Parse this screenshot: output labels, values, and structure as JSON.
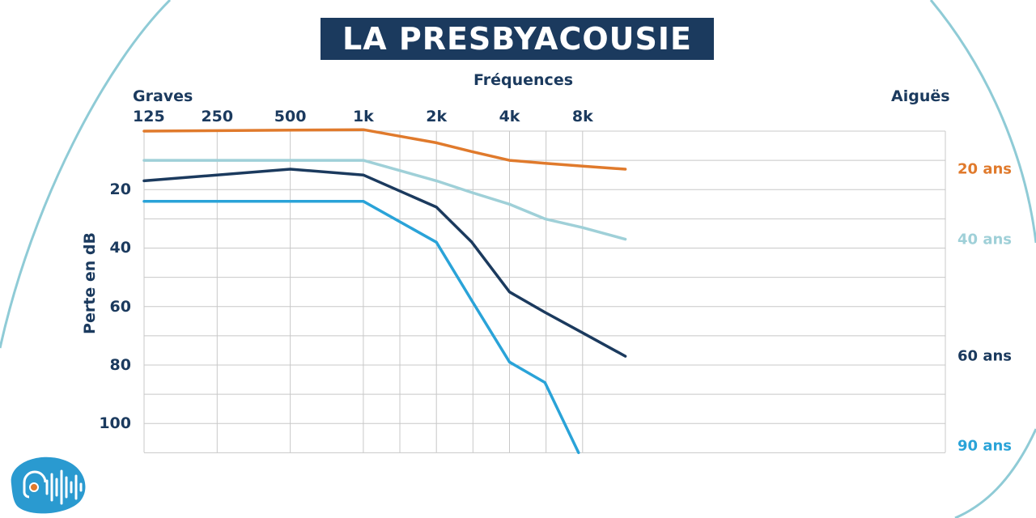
{
  "colors": {
    "navy": "#1b3a5e",
    "orange": "#e07a2c",
    "light_blue": "#9fd0d8",
    "blue": "#2aa3d8",
    "grid": "#c8c8c8",
    "swoosh": "#8fcbd6"
  },
  "logo": {
    "icon": "ear-soundwave-logo-icon"
  },
  "chart_data": {
    "type": "line",
    "title": "LA PRESBYACOUSIE",
    "xlabel": "Fréquences",
    "x_side_labels": {
      "left": "Graves",
      "right": "Aiguës"
    },
    "ylabel": "Perte en dB",
    "x_scale": "log2",
    "x_ticks": [
      {
        "value": 125,
        "label": "125"
      },
      {
        "value": 250,
        "label": "250"
      },
      {
        "value": 500,
        "label": "500"
      },
      {
        "value": 1000,
        "label": "1k"
      },
      {
        "value": 2000,
        "label": "2k"
      },
      {
        "value": 4000,
        "label": "4k"
      },
      {
        "value": 8000,
        "label": "8k"
      }
    ],
    "xlim": [
      125,
      12000
    ],
    "y_inverted": true,
    "y_ticks": [
      {
        "value": 20,
        "label": "20"
      },
      {
        "value": 40,
        "label": "40"
      },
      {
        "value": 60,
        "label": "60"
      },
      {
        "value": 80,
        "label": "80"
      },
      {
        "value": 100,
        "label": "100"
      }
    ],
    "ylim": [
      0,
      110
    ],
    "grid": true,
    "legend_position": "right",
    "series": [
      {
        "name": "20 ans",
        "color": "#e07a2c",
        "points": [
          [
            125,
            0
          ],
          [
            1000,
            -0.5
          ],
          [
            2000,
            4
          ],
          [
            2800,
            7
          ],
          [
            4000,
            10
          ],
          [
            5600,
            11
          ],
          [
            8000,
            12
          ],
          [
            12000,
            13
          ]
        ]
      },
      {
        "name": "40 ans",
        "color": "#9fd0d8",
        "points": [
          [
            125,
            10
          ],
          [
            1000,
            10
          ],
          [
            2000,
            17
          ],
          [
            2800,
            21
          ],
          [
            4000,
            25
          ],
          [
            5600,
            30
          ],
          [
            8000,
            33
          ],
          [
            12000,
            37
          ]
        ]
      },
      {
        "name": "60 ans",
        "color": "#1b3a5e",
        "points": [
          [
            125,
            17
          ],
          [
            500,
            13
          ],
          [
            1000,
            15
          ],
          [
            2000,
            26
          ],
          [
            2800,
            38
          ],
          [
            4000,
            55
          ],
          [
            5600,
            62
          ],
          [
            8000,
            69
          ],
          [
            12000,
            77
          ]
        ]
      },
      {
        "name": "90 ans",
        "color": "#2aa3d8",
        "points": [
          [
            125,
            24
          ],
          [
            1000,
            24
          ],
          [
            2000,
            38
          ],
          [
            2800,
            58
          ],
          [
            4000,
            79
          ],
          [
            5600,
            86
          ],
          [
            7700,
            110
          ]
        ]
      }
    ]
  }
}
